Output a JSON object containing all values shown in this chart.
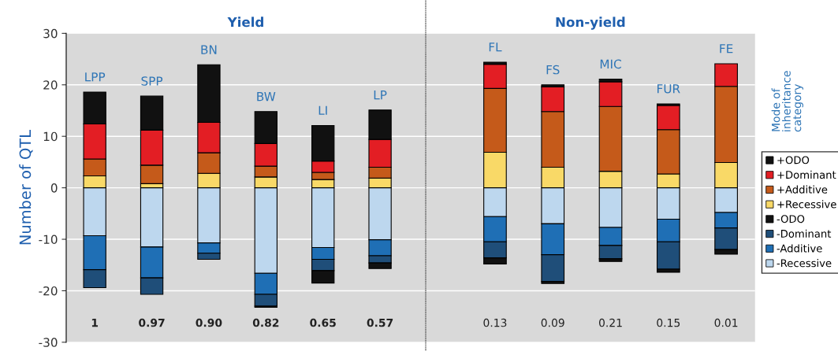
{
  "chart_data": [
    {
      "type": "bar",
      "title": "Yield",
      "ylabel": "Number of QTL",
      "stacked": true,
      "grid": "y",
      "legend": false,
      "tick_labels": "y",
      "categories": [
        "LPP",
        "SPP",
        "BN",
        "BW",
        "LI",
        "LP"
      ],
      "ylim": [
        -30,
        30
      ],
      "yticks": [
        -30,
        -20,
        -10,
        0,
        10,
        20,
        30
      ],
      "annotations": [
        "1",
        "0.97",
        "0.90",
        "0.82",
        "0.65",
        "0.57"
      ],
      "series": [
        {
          "color": "#f9d967",
          "values": [
            2.3,
            0.8,
            2.8,
            2.1,
            1.6,
            1.9
          ]
        },
        {
          "color": "#c55a1a",
          "values": [
            3.3,
            3.6,
            4.0,
            2.1,
            1.4,
            2.1
          ]
        },
        {
          "color": "#e31e24",
          "values": [
            6.8,
            6.8,
            5.9,
            4.4,
            2.2,
            5.4
          ]
        },
        {
          "color": "#111111",
          "values": [
            6.2,
            6.6,
            11.2,
            6.2,
            6.9,
            5.7
          ]
        },
        {
          "color": "#bdd7ee",
          "values": [
            -9.3,
            -11.5,
            -10.7,
            -16.6,
            -11.6,
            -10.1
          ]
        },
        {
          "color": "#1f6fb5",
          "values": [
            -6.6,
            -6.0,
            -2.0,
            -4.1,
            -2.3,
            -3.1
          ]
        },
        {
          "color": "#1f4e79",
          "values": [
            -3.5,
            -3.2,
            -1.2,
            -2.3,
            -2.2,
            -1.4
          ]
        },
        {
          "color": "#111111",
          "values": [
            null,
            null,
            null,
            -0.2,
            -2.4,
            -1.1
          ]
        }
      ]
    },
    {
      "type": "bar",
      "title": "Non-yield",
      "stacked": true,
      "grid": "y",
      "legend": "right",
      "legend_title": "Mode of inheritance category",
      "tick_labels": false,
      "categories": [
        "FL",
        "FS",
        "MIC",
        "FUR",
        "FE"
      ],
      "ylim": [
        -30,
        30
      ],
      "yticks": [
        -30,
        -20,
        -10,
        0,
        10,
        20,
        30
      ],
      "annotations": [
        "0.13",
        "0.09",
        "0.21",
        "0.15",
        "0.01"
      ],
      "series": [
        {
          "name": "+Recessive",
          "color": "#f9d967",
          "values": [
            6.9,
            4.0,
            3.2,
            2.7,
            4.9
          ]
        },
        {
          "name": "+Additive",
          "color": "#c55a1a",
          "values": [
            12.4,
            10.8,
            12.6,
            8.6,
            14.8
          ]
        },
        {
          "name": "+Dominant",
          "color": "#e31e24",
          "values": [
            4.7,
            4.8,
            4.8,
            4.7,
            4.4
          ]
        },
        {
          "name": "+ODO",
          "color": "#111111",
          "values": [
            0.4,
            0.4,
            0.5,
            0.3,
            null
          ]
        },
        {
          "name": "-Recessive",
          "color": "#bdd7ee",
          "values": [
            -5.6,
            -7.0,
            -7.7,
            -6.1,
            -4.8
          ]
        },
        {
          "name": "-Additive",
          "color": "#1f6fb5",
          "values": [
            -4.9,
            -6.0,
            -3.5,
            -4.4,
            -3.0
          ]
        },
        {
          "name": "-Dominant",
          "color": "#1f4e79",
          "values": [
            -3.1,
            -5.2,
            -2.6,
            -5.3,
            -4.2
          ]
        },
        {
          "name": "-ODO",
          "color": "#111111",
          "values": [
            -1.2,
            -0.4,
            -0.5,
            -0.6,
            -0.9
          ]
        }
      ]
    }
  ]
}
